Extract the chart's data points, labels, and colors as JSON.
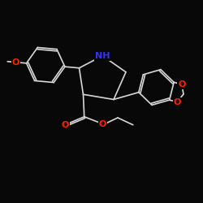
{
  "background_color": "#080808",
  "bond_color": "#d8d8d8",
  "atom_colors": {
    "N": "#3333ff",
    "O": "#ff2200"
  },
  "bond_width": 1.2,
  "figsize": [
    2.5,
    2.5
  ],
  "dpi": 100
}
